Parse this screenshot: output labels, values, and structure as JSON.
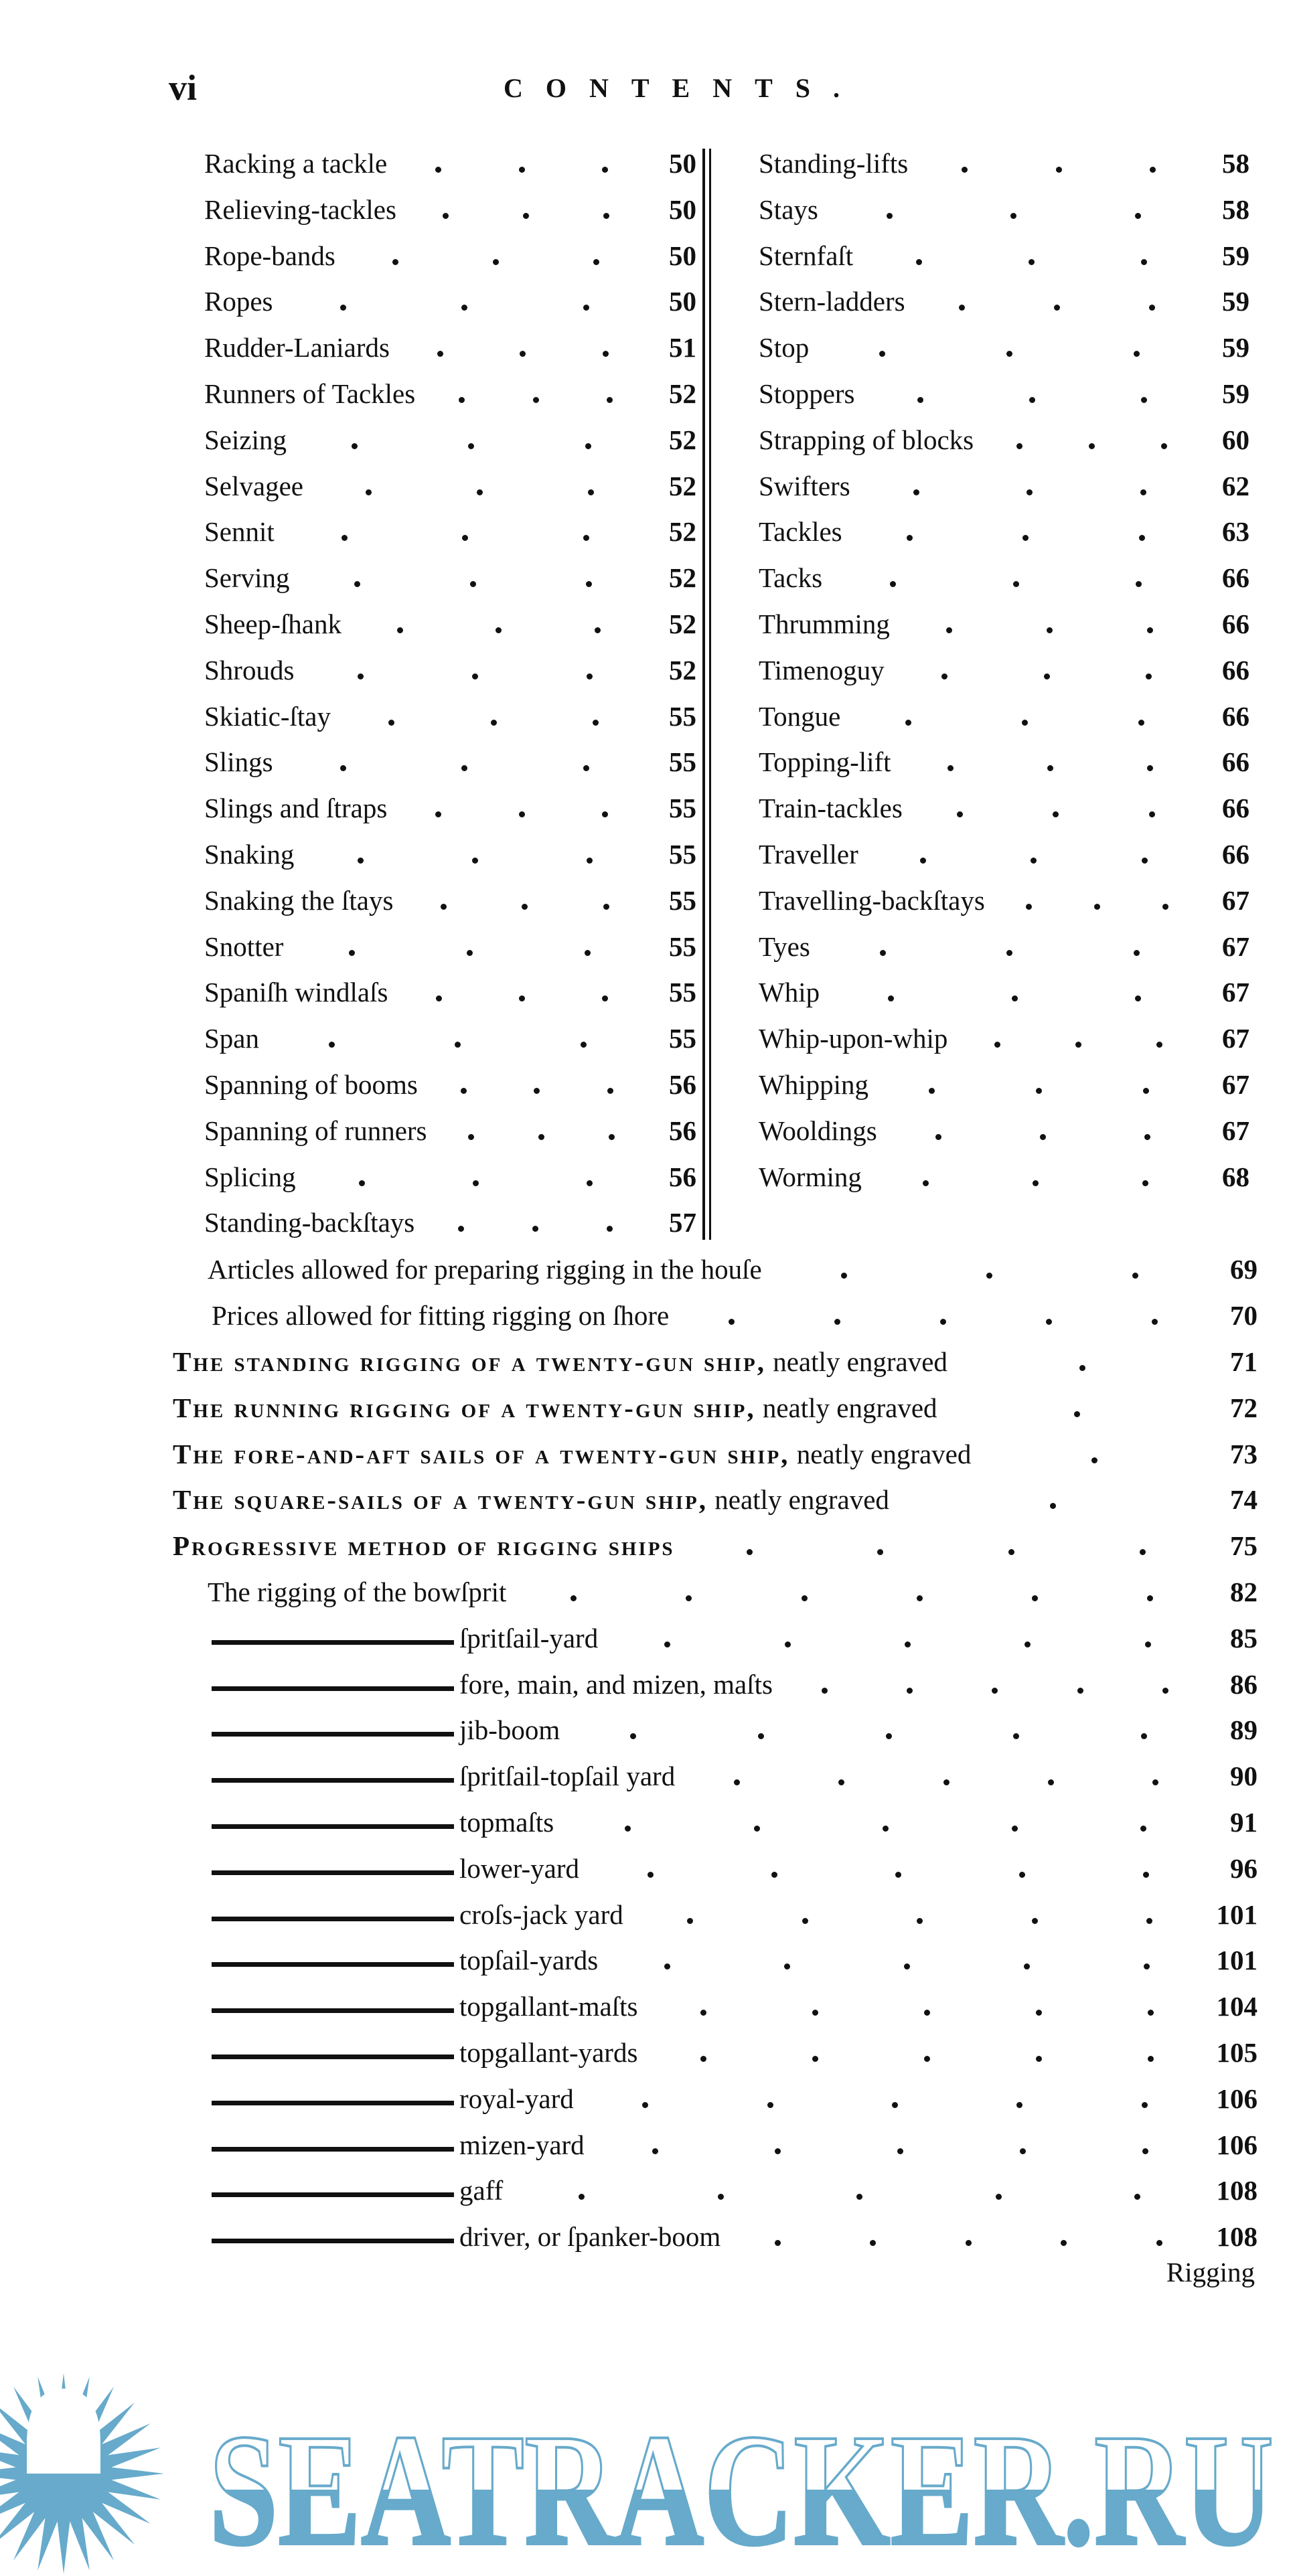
{
  "header": {
    "page_number": "vi",
    "title": "CONTENTS."
  },
  "left_column": [
    {
      "label": "Racking a tackle",
      "page": "50"
    },
    {
      "label": "Relieving-tackles",
      "page": "50"
    },
    {
      "label": "Rope-bands",
      "page": "50"
    },
    {
      "label": "Ropes",
      "page": "50"
    },
    {
      "label": "Rudder-Laniards",
      "page": "51"
    },
    {
      "label": "Runners of Tackles",
      "page": "52"
    },
    {
      "label": "Seizing",
      "page": "52"
    },
    {
      "label": "Selvagee",
      "page": "52"
    },
    {
      "label": "Sennit",
      "page": "52"
    },
    {
      "label": "Serving",
      "page": "52"
    },
    {
      "label": "Sheep-ſhank",
      "page": "52"
    },
    {
      "label": "Shrouds",
      "page": "52"
    },
    {
      "label": "Skiatic-ſtay",
      "page": "55"
    },
    {
      "label": "Slings",
      "page": "55"
    },
    {
      "label": "Slings and ſtraps",
      "page": "55"
    },
    {
      "label": "Snaking",
      "page": "55"
    },
    {
      "label": "Snaking the ſtays",
      "page": "55"
    },
    {
      "label": "Snotter",
      "page": "55"
    },
    {
      "label": "Spaniſh windlaſs",
      "page": "55"
    },
    {
      "label": "Span",
      "page": "55"
    },
    {
      "label": "Spanning of booms",
      "page": "56"
    },
    {
      "label": "Spanning of runners",
      "page": "56"
    },
    {
      "label": "Splicing",
      "page": "56"
    },
    {
      "label": "Standing-backſtays",
      "page": "57"
    }
  ],
  "right_column": [
    {
      "label": "Standing-lifts",
      "page": "58"
    },
    {
      "label": "Stays",
      "page": "58"
    },
    {
      "label": "Sternfaſt",
      "page": "59"
    },
    {
      "label": "Stern-ladders",
      "page": "59"
    },
    {
      "label": "Stop",
      "page": "59"
    },
    {
      "label": "Stoppers",
      "page": "59"
    },
    {
      "label": "Strapping of blocks",
      "page": "60"
    },
    {
      "label": "Swifters",
      "page": "62"
    },
    {
      "label": "Tackles",
      "page": "63"
    },
    {
      "label": "Tacks",
      "page": "66"
    },
    {
      "label": "Thrumming",
      "page": "66"
    },
    {
      "label": "Timenoguy",
      "page": "66"
    },
    {
      "label": "Tongue",
      "page": "66"
    },
    {
      "label": "Topping-lift",
      "page": "66"
    },
    {
      "label": "Train-tackles",
      "page": "66"
    },
    {
      "label": "Traveller",
      "page": "66"
    },
    {
      "label": "Travelling-backſtays",
      "page": "67"
    },
    {
      "label": "Tyes",
      "page": "67"
    },
    {
      "label": "Whip",
      "page": "67"
    },
    {
      "label": "Whip-upon-whip",
      "page": "67"
    },
    {
      "label": "Whipping",
      "page": "67"
    },
    {
      "label": "Wooldings",
      "page": "67"
    },
    {
      "label": "Worming",
      "page": "68"
    }
  ],
  "articles": [
    {
      "label": "Articles allowed for preparing rigging in the houſe",
      "page": "69"
    },
    {
      "label": "Prices allowed for fitting rigging on ſhore",
      "page": "70"
    }
  ],
  "sections": [
    {
      "caps": "The standing rigging of a twenty-gun ship,",
      "rest": " neatly engraved",
      "page": "71"
    },
    {
      "caps": "The running rigging of a twenty-gun ship,",
      "rest": " neatly engraved",
      "page": "72"
    },
    {
      "caps": "The fore-and-aft sails of a twenty-gun ship,",
      "rest": " neatly engraved",
      "page": "73"
    },
    {
      "caps": "The square-sails of a twenty-gun ship,",
      "rest": " neatly engraved",
      "page": "74"
    },
    {
      "caps": "Progressive method of rigging ships",
      "rest": "",
      "page": "75"
    }
  ],
  "sub_first": {
    "label": "The rigging of the bowſprit",
    "page": "82"
  },
  "sub_entries": [
    {
      "label": "ſpritſail-yard",
      "page": "85"
    },
    {
      "label": "fore, main, and mizen, maſts",
      "page": "86"
    },
    {
      "label": "jib-boom",
      "page": "89"
    },
    {
      "label": "ſpritſail-topſail yard",
      "page": "90"
    },
    {
      "label": "topmaſts",
      "page": "91"
    },
    {
      "label": "lower-yard",
      "page": "96"
    },
    {
      "label": "croſs-jack yard",
      "page": "101"
    },
    {
      "label": "topſail-yards",
      "page": "101"
    },
    {
      "label": "topgallant-maſts",
      "page": "104"
    },
    {
      "label": "topgallant-yards",
      "page": "105"
    },
    {
      "label": "royal-yard",
      "page": "106"
    },
    {
      "label": "mizen-yard",
      "page": "106"
    },
    {
      "label": "gaff",
      "page": "108"
    },
    {
      "label": "driver, or ſpanker-boom",
      "page": "108"
    }
  ],
  "catchword": "Rigging",
  "watermark": {
    "text": "SEATRACKER.RU",
    "color": "#67aacb",
    "icon": "sun-icon"
  }
}
